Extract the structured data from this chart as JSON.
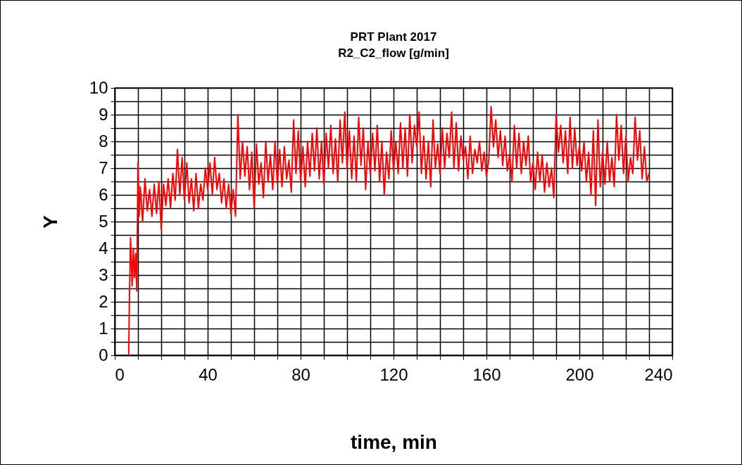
{
  "chart_data": {
    "type": "line",
    "title": "PRT Plant 2017",
    "subtitle": "R2_C2_flow [g/min]",
    "xlabel": "time, min",
    "ylabel": "Y",
    "x": [
      6,
      6.3,
      6.8,
      7.5,
      8,
      8.5,
      9,
      9.5,
      10,
      10.5,
      11,
      12,
      13,
      14,
      15,
      16,
      17,
      18,
      19,
      20,
      21,
      22,
      23,
      24,
      25,
      26,
      27,
      28,
      29,
      30,
      31,
      32,
      33,
      34,
      35,
      36,
      37,
      38,
      39,
      40,
      41,
      42,
      43,
      44,
      45,
      46,
      47,
      48,
      49,
      50,
      51,
      52,
      53,
      54,
      55,
      56,
      57,
      58,
      59,
      60,
      61,
      62,
      63,
      64,
      65,
      66,
      67,
      68,
      69,
      70,
      71,
      72,
      73,
      74,
      75,
      76,
      77,
      78,
      79,
      80,
      81,
      82,
      83,
      84,
      85,
      86,
      87,
      88,
      89,
      90,
      91,
      92,
      93,
      94,
      95,
      96,
      97,
      98,
      99,
      100,
      101,
      102,
      103,
      104,
      105,
      106,
      107,
      108,
      109,
      110,
      111,
      112,
      113,
      114,
      115,
      116,
      117,
      118,
      119,
      120,
      121,
      122,
      123,
      124,
      125,
      126,
      127,
      128,
      129,
      130,
      131,
      132,
      133,
      134,
      135,
      136,
      137,
      138,
      139,
      140,
      141,
      142,
      143,
      144,
      145,
      146,
      147,
      148,
      149,
      150,
      151,
      152,
      153,
      154,
      155,
      156,
      157,
      158,
      159,
      160,
      161,
      162,
      163,
      164,
      165,
      166,
      167,
      168,
      169,
      170,
      171,
      172,
      173,
      174,
      175,
      176,
      177,
      178,
      179,
      180,
      181,
      182,
      183,
      184,
      185,
      186,
      187,
      188,
      189,
      190,
      191,
      192,
      193,
      194,
      195,
      196,
      197,
      198,
      199,
      200,
      201,
      202,
      203,
      204,
      205,
      206,
      207,
      208,
      209,
      210,
      211,
      212,
      213,
      214,
      215,
      216,
      217,
      218,
      219,
      220,
      221,
      222,
      223,
      224,
      225,
      226,
      227,
      228,
      229,
      230
    ],
    "series": [
      {
        "color": "#ff0000",
        "values": [
          0,
          2.0,
          4.4,
          2.6,
          4.0,
          2.9,
          3.8,
          2.4,
          7.2,
          5.2,
          6.3,
          5.0,
          6.6,
          5.4,
          6.2,
          5.2,
          6.4,
          5.3,
          6.5,
          4.7,
          6.4,
          5.6,
          6.6,
          5.5,
          6.8,
          5.8,
          7.7,
          6.0,
          7.4,
          5.8,
          7.2,
          5.7,
          6.6,
          5.4,
          6.8,
          5.5,
          6.4,
          5.8,
          7.0,
          6.2,
          7.2,
          6.0,
          7.4,
          6.2,
          6.8,
          5.7,
          6.6,
          5.5,
          6.4,
          5.3,
          6.2,
          5.2,
          9.0,
          6.6,
          8.0,
          6.7,
          7.8,
          6.2,
          7.6,
          5.5,
          7.9,
          6.4,
          7.2,
          5.9,
          8.0,
          6.5,
          7.5,
          6.2,
          8.0,
          6.4,
          7.7,
          6.3,
          7.8,
          6.6,
          7.3,
          6.1,
          8.8,
          6.8,
          8.4,
          6.5,
          7.8,
          6.3,
          8.0,
          6.7,
          8.3,
          6.9,
          8.5,
          6.6,
          8.0,
          6.4,
          8.3,
          7.0,
          8.6,
          6.8,
          8.1,
          6.5,
          8.8,
          7.2,
          9.1,
          7.0,
          8.4,
          6.6,
          8.2,
          6.5,
          8.9,
          7.1,
          8.5,
          6.2,
          8.0,
          6.8,
          8.3,
          6.9,
          8.6,
          6.5,
          8.0,
          6.0,
          7.6,
          6.6,
          8.4,
          6.9,
          8.0,
          6.8,
          8.7,
          7.0,
          8.5,
          6.7,
          9.0,
          7.2,
          8.6,
          7.8,
          9.1,
          6.8,
          8.2,
          6.6,
          8.0,
          6.3,
          8.8,
          7.0,
          7.9,
          6.8,
          8.5,
          7.0,
          8.3,
          7.4,
          9.1,
          7.0,
          8.7,
          6.9,
          8.2,
          7.3,
          7.8,
          6.6,
          8.2,
          6.8,
          7.7,
          7.2,
          8.0,
          6.9,
          7.6,
          6.7,
          7.3,
          9.3,
          7.8,
          8.8,
          7.4,
          8.4,
          7.1,
          8.2,
          6.9,
          7.5,
          6.5,
          8.6,
          7.0,
          8.3,
          6.8,
          8.0,
          7.1,
          8.2,
          6.5,
          7.2,
          6.2,
          7.6,
          6.5,
          7.5,
          6.1,
          7.2,
          6.3,
          7.0,
          5.9,
          9.0,
          7.6,
          8.6,
          7.2,
          8.4,
          6.8,
          8.9,
          7.0,
          8.5,
          7.1,
          7.8,
          6.9,
          8.0,
          6.5,
          7.6,
          6.0,
          8.4,
          5.6,
          8.8,
          6.3,
          7.6,
          6.4,
          8.0,
          6.5,
          7.4,
          6.3,
          9.0,
          7.3,
          8.6,
          6.8,
          8.2,
          6.5,
          7.4,
          6.8,
          8.9,
          7.3,
          8.4,
          6.6,
          7.8,
          6.5,
          6.8
        ]
      }
    ],
    "xlim": [
      0,
      240
    ],
    "xticks": [
      0,
      {
        "value": 10,
        "label": null
      },
      {
        "value": 20,
        "label": null
      },
      {
        "value": 30,
        "label": null
      },
      40,
      {
        "value": 50,
        "label": null
      },
      {
        "value": 60,
        "label": null
      },
      {
        "value": 70,
        "label": null
      },
      80,
      {
        "value": 90,
        "label": null
      },
      {
        "value": 100,
        "label": null
      },
      {
        "value": 110,
        "label": null
      },
      120,
      {
        "value": 130,
        "label": null
      },
      {
        "value": 140,
        "label": null
      },
      {
        "value": 150,
        "label": null
      },
      160,
      {
        "value": 170,
        "label": null
      },
      {
        "value": 180,
        "label": null
      },
      {
        "value": 190,
        "label": null
      },
      200,
      {
        "value": 210,
        "label": null
      },
      {
        "value": 220,
        "label": null
      },
      {
        "value": 230,
        "label": null
      },
      240
    ],
    "ylim": [
      0,
      10
    ],
    "yticks": [
      0,
      {
        "value": 0.5,
        "label": null
      },
      1,
      {
        "value": 1.5,
        "label": null
      },
      2,
      {
        "value": 2.5,
        "label": null
      },
      3,
      {
        "value": 3.5,
        "label": null
      },
      4,
      {
        "value": 4.5,
        "label": null
      },
      5,
      {
        "value": 5.5,
        "label": null
      },
      6,
      {
        "value": 6.5,
        "label": null
      },
      7,
      {
        "value": 7.5,
        "label": null
      },
      8,
      {
        "value": 8.5,
        "label": null
      },
      9,
      {
        "value": 9.5,
        "label": null
      },
      10
    ],
    "grid": true,
    "legend": false,
    "line_style": "solid",
    "marker": "none"
  }
}
